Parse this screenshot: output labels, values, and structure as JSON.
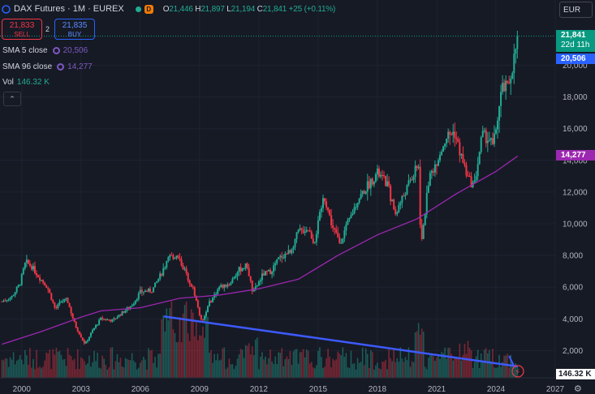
{
  "header": {
    "symbol": "DAX Futures · 1M · EUREX",
    "market_badge": "D",
    "ohlc": [
      {
        "k": "O",
        "v": "21,446"
      },
      {
        "k": "H",
        "v": "21,897"
      },
      {
        "k": "L",
        "v": "21,194"
      },
      {
        "k": "C",
        "v": "21,841"
      }
    ],
    "change": "+25 (+0.11%)"
  },
  "trade": {
    "sell_price": "21,833",
    "sell_label": "SELL",
    "spread": "2",
    "buy_price": "21,835",
    "buy_label": "BUY"
  },
  "indicators": {
    "sma5": {
      "label": "SMA 5 close",
      "value": "20,506"
    },
    "sma96": {
      "label": "SMA 96 close",
      "value": "14,277"
    },
    "vol": {
      "label": "Vol",
      "value": "146.32 K"
    },
    "collapse_glyph": "⌃"
  },
  "currency": "EUR",
  "price_labels": {
    "last": "21,841",
    "countdown": "22d 11h",
    "sma5": "20,506",
    "sma96": "14,277",
    "vol": "146.32 K"
  },
  "icons": {
    "settings": "gear-icon",
    "alert": "lightning-icon",
    "collapse": "chevron-up-icon"
  },
  "colors": {
    "up": "#22ab94",
    "down": "#f23645",
    "sma96": "#9c27b0",
    "sma5": "#2962ff",
    "trendline": "#3d5afe",
    "background": "#161a25"
  },
  "chart_data": {
    "type": "candlestick",
    "y_ticks": [
      "2,000",
      "4,000",
      "6,000",
      "8,000",
      "10,000",
      "12,000",
      "14,000",
      "16,000",
      "18,000",
      "20,000"
    ],
    "x_ticks": [
      "2000",
      "2003",
      "2006",
      "2009",
      "2012",
      "2015",
      "2018",
      "2021",
      "2024",
      "2027"
    ],
    "ylim": [
      0,
      22500
    ],
    "xlim": [
      1998.9,
      2027.0
    ],
    "price_path": [
      [
        1999.0,
        5100
      ],
      [
        1999.5,
        5400
      ],
      [
        1999.9,
        6200
      ],
      [
        2000.2,
        7600
      ],
      [
        2000.5,
        7300
      ],
      [
        2000.9,
        6600
      ],
      [
        2001.3,
        6000
      ],
      [
        2001.7,
        4600
      ],
      [
        2002.0,
        5100
      ],
      [
        2002.3,
        5200
      ],
      [
        2002.7,
        3600
      ],
      [
        2003.2,
        2400
      ],
      [
        2003.6,
        3300
      ],
      [
        2004.0,
        4000
      ],
      [
        2004.6,
        3900
      ],
      [
        2005.0,
        4300
      ],
      [
        2005.6,
        4900
      ],
      [
        2006.0,
        5700
      ],
      [
        2006.6,
        5800
      ],
      [
        2007.0,
        6700
      ],
      [
        2007.5,
        7900
      ],
      [
        2007.9,
        8000
      ],
      [
        2008.3,
        6900
      ],
      [
        2008.7,
        5800
      ],
      [
        2009.1,
        3800
      ],
      [
        2009.5,
        5000
      ],
      [
        2010.0,
        6000
      ],
      [
        2010.5,
        6200
      ],
      [
        2011.0,
        7100
      ],
      [
        2011.4,
        7400
      ],
      [
        2011.7,
        5600
      ],
      [
        2012.2,
        6800
      ],
      [
        2012.6,
        7000
      ],
      [
        2013.0,
        7800
      ],
      [
        2013.6,
        8300
      ],
      [
        2014.0,
        9500
      ],
      [
        2014.5,
        9700
      ],
      [
        2014.8,
        8800
      ],
      [
        2015.3,
        11800
      ],
      [
        2015.7,
        9900
      ],
      [
        2016.1,
        8800
      ],
      [
        2016.6,
        10300
      ],
      [
        2017.0,
        11500
      ],
      [
        2017.5,
        12400
      ],
      [
        2018.0,
        13200
      ],
      [
        2018.5,
        12500
      ],
      [
        2018.9,
        10600
      ],
      [
        2019.4,
        12000
      ],
      [
        2019.9,
        13300
      ],
      [
        2020.1,
        13600
      ],
      [
        2020.2,
        8400
      ],
      [
        2020.6,
        12800
      ],
      [
        2021.0,
        14000
      ],
      [
        2021.5,
        15500
      ],
      [
        2021.9,
        15800
      ],
      [
        2022.2,
        14400
      ],
      [
        2022.6,
        12800
      ],
      [
        2022.9,
        12400
      ],
      [
        2023.3,
        15600
      ],
      [
        2023.7,
        15300
      ],
      [
        2023.85,
        14800
      ],
      [
        2024.3,
        18500
      ],
      [
        2024.6,
        18600
      ],
      [
        2024.9,
        20300
      ],
      [
        2025.1,
        21841
      ]
    ],
    "series": [
      {
        "name": "SMA 96 close",
        "values": [
          [
            1999.0,
            2400
          ],
          [
            2001.0,
            3200
          ],
          [
            2003.0,
            4100
          ],
          [
            2004.0,
            4500
          ],
          [
            2006.0,
            4700
          ],
          [
            2008.0,
            5300
          ],
          [
            2010.0,
            5500
          ],
          [
            2012.0,
            5900
          ],
          [
            2014.0,
            6500
          ],
          [
            2016.0,
            8000
          ],
          [
            2018.0,
            9300
          ],
          [
            2020.0,
            10300
          ],
          [
            2022.0,
            11900
          ],
          [
            2023.0,
            12600
          ],
          [
            2024.0,
            13300
          ],
          [
            2025.1,
            14277
          ]
        ]
      },
      {
        "name": "SMA 5 close",
        "last": 20506
      }
    ],
    "trendline": [
      [
        2007.2,
        4150
      ],
      [
        2025.1,
        1000
      ]
    ],
    "volume_last": "146.32 K"
  }
}
